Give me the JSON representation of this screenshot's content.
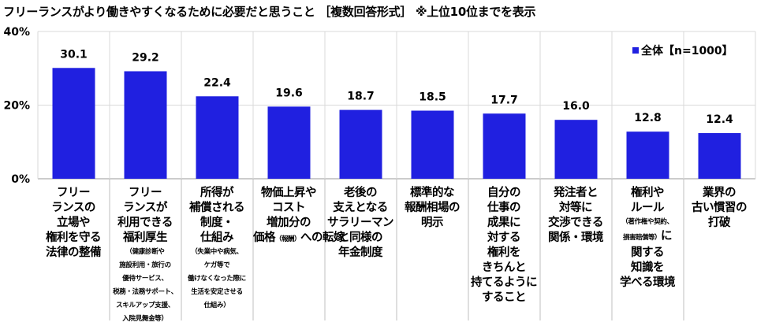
{
  "title": "フリーランスがより働きやすくなるために必要だと思うこと ［複数回答形式］ ※上位10位までを表示",
  "colors": {
    "bar": "#2020e0",
    "grid": "#d9d9d9",
    "separator": "#bfbfbf"
  },
  "chart_data": {
    "type": "bar",
    "title": "フリーランスがより働きやすくなるために必要だと思うこと ［複数回答形式］ ※上位10位までを表示",
    "ylim": [
      0,
      40
    ],
    "yticks": [
      0,
      20,
      40
    ],
    "ytick_labels": [
      "0%",
      "20%",
      "40%"
    ],
    "legend": {
      "label": "全体【n=1000】",
      "position": "top-right"
    },
    "values": [
      30.1,
      29.2,
      22.4,
      19.6,
      18.7,
      18.5,
      17.7,
      16.0,
      12.8,
      12.4
    ],
    "value_labels": [
      "30.1",
      "29.2",
      "22.4",
      "19.6",
      "18.7",
      "18.5",
      "17.7",
      "16.0",
      "12.8",
      "12.4"
    ],
    "categories": [
      {
        "lines": [
          [
            {
              "t": "フリー"
            }
          ],
          [
            {
              "t": "ランスの"
            }
          ],
          [
            {
              "t": "立場や"
            }
          ],
          [
            {
              "t": "権利を守る"
            }
          ],
          [
            {
              "t": "法律の整備"
            }
          ]
        ]
      },
      {
        "lines": [
          [
            {
              "t": "フリー"
            }
          ],
          [
            {
              "t": "ランスが"
            }
          ],
          [
            {
              "t": "利用できる"
            }
          ],
          [
            {
              "t": "福利厚生"
            }
          ],
          [
            {
              "t": "（健康診断や",
              "sm": true
            }
          ],
          [
            {
              "t": "施設利用・旅行の",
              "sm": true
            }
          ],
          [
            {
              "t": "優待サービス、",
              "sm": true
            }
          ],
          [
            {
              "t": "税務・法務サポート、",
              "sm": true
            }
          ],
          [
            {
              "t": "スキルアップ支援、",
              "sm": true
            }
          ],
          [
            {
              "t": "入院見舞金等）",
              "sm": true
            }
          ]
        ]
      },
      {
        "lines": [
          [
            {
              "t": "所得が"
            }
          ],
          [
            {
              "t": "補償される"
            }
          ],
          [
            {
              "t": "制度・"
            }
          ],
          [
            {
              "t": "仕組み"
            }
          ],
          [
            {
              "t": "（失業中や病気、",
              "sm": true
            }
          ],
          [
            {
              "t": "ケガ等で",
              "sm": true
            }
          ],
          [
            {
              "t": "働けなくなった際に",
              "sm": true
            }
          ],
          [
            {
              "t": "生活を安定させる",
              "sm": true
            }
          ],
          [
            {
              "t": "仕組み）",
              "sm": true
            }
          ]
        ]
      },
      {
        "lines": [
          [
            {
              "t": "物価上昇や"
            }
          ],
          [
            {
              "t": "コスト"
            }
          ],
          [
            {
              "t": "増加分の"
            }
          ],
          [
            {
              "t": "価格"
            },
            {
              "t": "（報酬）",
              "sm": true
            },
            {
              "t": "への転嫁"
            }
          ]
        ]
      },
      {
        "lines": [
          [
            {
              "t": "老後の"
            }
          ],
          [
            {
              "t": "支えとなる"
            }
          ],
          [
            {
              "t": "サラリーマン"
            }
          ],
          [
            {
              "t": "と同様の"
            }
          ],
          [
            {
              "t": "年金制度"
            }
          ]
        ]
      },
      {
        "lines": [
          [
            {
              "t": "標準的な"
            }
          ],
          [
            {
              "t": "報酬相場の"
            }
          ],
          [
            {
              "t": "明示"
            }
          ]
        ]
      },
      {
        "lines": [
          [
            {
              "t": "自分の"
            }
          ],
          [
            {
              "t": "仕事の"
            }
          ],
          [
            {
              "t": "成果に"
            }
          ],
          [
            {
              "t": "対する"
            }
          ],
          [
            {
              "t": "権利を"
            }
          ],
          [
            {
              "t": "きちんと"
            }
          ],
          [
            {
              "t": "持てるように"
            }
          ],
          [
            {
              "t": "すること"
            }
          ]
        ]
      },
      {
        "lines": [
          [
            {
              "t": "発注者と"
            }
          ],
          [
            {
              "t": "対等に"
            }
          ],
          [
            {
              "t": "交渉できる"
            }
          ],
          [
            {
              "t": "関係・環境"
            }
          ]
        ]
      },
      {
        "lines": [
          [
            {
              "t": "権利や"
            }
          ],
          [
            {
              "t": "ルール"
            }
          ],
          [
            {
              "t": "（著作権や契約、",
              "sm": true
            }
          ],
          [
            {
              "t": "損害賠償等）",
              "sm": true
            },
            {
              "t": "に"
            }
          ],
          [
            {
              "t": "関する"
            }
          ],
          [
            {
              "t": "知識を"
            }
          ],
          [
            {
              "t": "学べる環境"
            }
          ]
        ]
      },
      {
        "lines": [
          [
            {
              "t": "業界の"
            }
          ],
          [
            {
              "t": "古い慣習の"
            }
          ],
          [
            {
              "t": "打破"
            }
          ]
        ]
      }
    ]
  }
}
